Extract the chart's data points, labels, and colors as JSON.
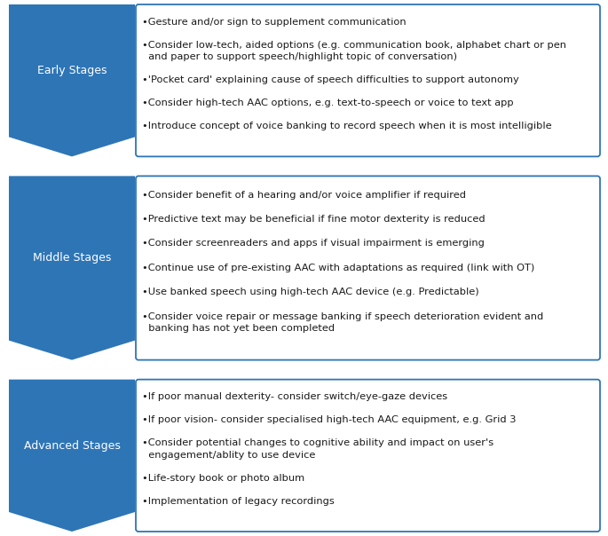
{
  "stages": [
    {
      "label": "Early Stages",
      "bullets": [
        "•Gesture and/or sign to supplement communication",
        "•Consider low-tech, aided options (e.g. communication book, alphabet chart or pen\n  and paper to support speech/highlight topic of conversation)",
        "•'Pocket card' explaining cause of speech difficulties to support autonomy",
        "•Consider high-tech AAC options, e.g. text-to-speech or voice to text app",
        "•Introduce concept of voice banking to record speech when it is most intelligible"
      ],
      "n_lines": [
        1,
        2,
        1,
        1,
        1
      ]
    },
    {
      "label": "Middle Stages",
      "bullets": [
        "•Consider benefit of a hearing and/or voice amplifier if required",
        "•Predictive text may be beneficial if fine motor dexterity is reduced",
        "•Consider screenreaders and apps if visual impairment is emerging",
        "•Continue use of pre-existing AAC with adaptations as required (link with OT)",
        "•Use banked speech using high-tech AAC device (e.g. Predictable)",
        "•Consider voice repair or message banking if speech deterioration evident and\n  banking has not yet been completed"
      ],
      "n_lines": [
        1,
        1,
        1,
        1,
        1,
        2
      ]
    },
    {
      "label": "Advanced Stages",
      "bullets": [
        "•If poor manual dexterity- consider switch/eye-gaze devices",
        "•If poor vision- consider specialised high-tech AAC equipment, e.g. Grid 3",
        "•Consider potential changes to cognitive ability and impact on user's\n  engagement/ablity to use device",
        "•Life-story book or photo album",
        "•Implementation of legacy recordings"
      ],
      "n_lines": [
        1,
        1,
        2,
        1,
        1
      ]
    }
  ],
  "arrow_color": "#2E75B6",
  "box_border_color": "#2E75B6",
  "box_fill_color": "#FFFFFF",
  "label_text_color": "#FFFFFF",
  "bullet_text_color": "#1A1A1A",
  "background_color": "#FFFFFF",
  "label_font_size": 9.0,
  "bullet_font_size": 8.2
}
